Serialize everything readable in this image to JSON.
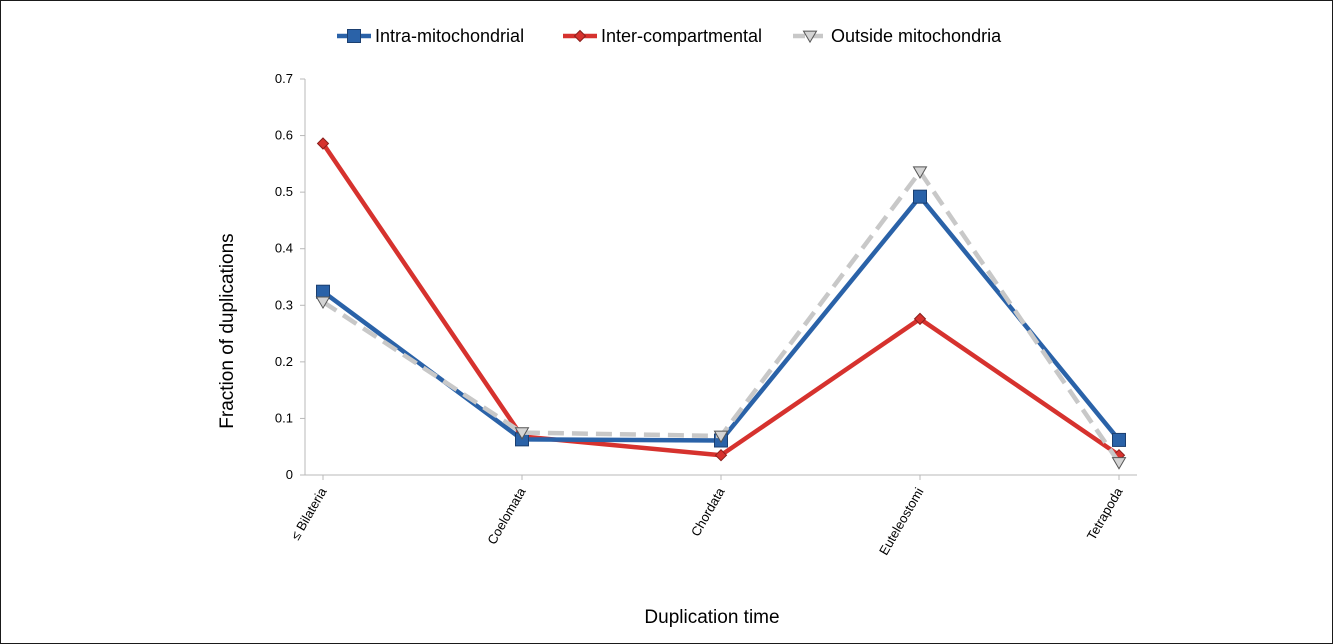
{
  "chart_data": {
    "type": "line",
    "title": "",
    "xlabel": "Duplication time",
    "ylabel": "Fraction of duplications",
    "categories": [
      "≤ Bilateria",
      "Coelomata",
      "Chordata",
      "Euteleostomi",
      "Tetrapoda"
    ],
    "ylim": [
      0,
      0.7
    ],
    "yticks": [
      0,
      0.1,
      0.2,
      0.3,
      0.4,
      0.5,
      0.6,
      0.7
    ],
    "grid": false,
    "legend_position": "top",
    "series": [
      {
        "name": "Intra-mitochondrial",
        "values": [
          0.324,
          0.063,
          0.061,
          0.492,
          0.062
        ],
        "color": "#2a62a8",
        "marker": "square",
        "line_style": "solid"
      },
      {
        "name": "Inter-compartmental",
        "values": [
          0.586,
          0.068,
          0.035,
          0.276,
          0.035
        ],
        "color": "#d6322e",
        "marker": "diamond",
        "line_style": "solid"
      },
      {
        "name": "Outside mitochondria",
        "values": [
          0.306,
          0.075,
          0.069,
          0.536,
          0.022
        ],
        "color": "#c8c8c8",
        "marker": "triangle-down",
        "line_style": "dashed"
      }
    ]
  }
}
